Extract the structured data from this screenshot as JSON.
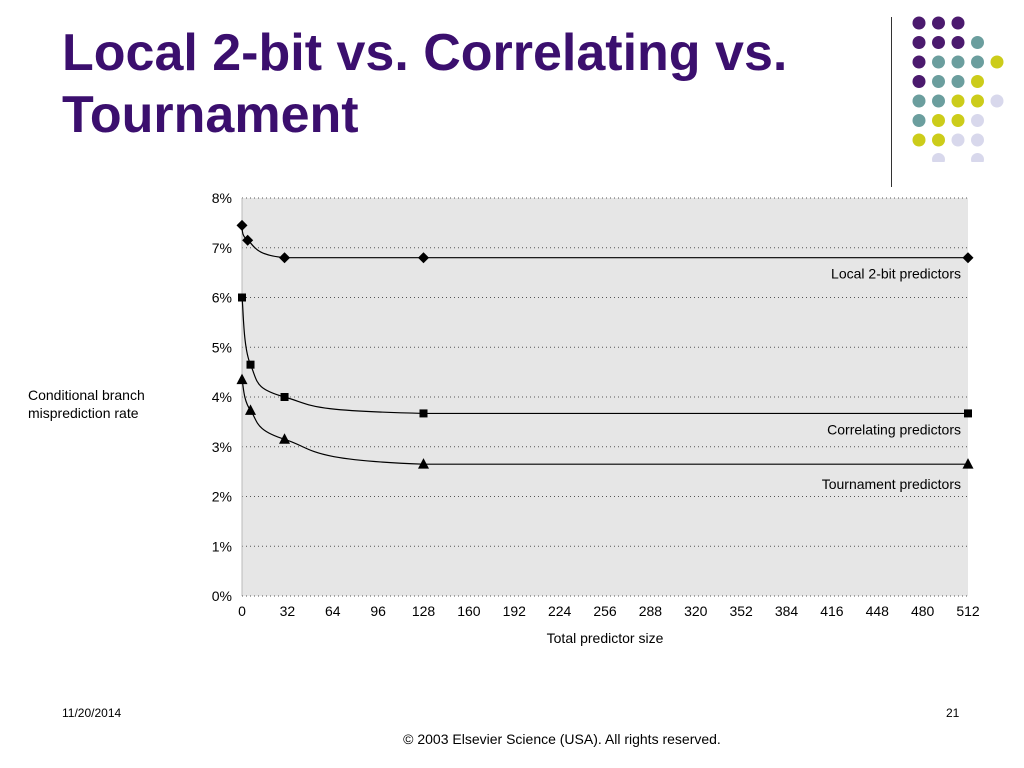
{
  "slide": {
    "title_line1": "Local 2-bit vs. Correlating vs.",
    "title_line2": "Tournament",
    "date": "11/20/2014",
    "page_number": "21",
    "copyright": "© 2003 Elsevier Science (USA). All rights reserved."
  },
  "decoration": {
    "dots": [
      [
        "#4b1a6e",
        "#4b1a6e",
        "#4b1a6e",
        null,
        null
      ],
      [
        "#4b1a6e",
        "#4b1a6e",
        "#4b1a6e",
        "#6b9e9e",
        null
      ],
      [
        "#4b1a6e",
        "#6b9e9e",
        "#6b9e9e",
        "#6b9e9e",
        "#cccc1a"
      ],
      [
        "#4b1a6e",
        "#6b9e9e",
        "#6b9e9e",
        "#cccc1a",
        null
      ],
      [
        "#6b9e9e",
        "#6b9e9e",
        "#cccc1a",
        "#cccc1a",
        "#d8d8ec"
      ],
      [
        "#6b9e9e",
        "#cccc1a",
        "#cccc1a",
        "#d8d8ec",
        null
      ],
      [
        "#cccc1a",
        "#cccc1a",
        "#d8d8ec",
        "#d8d8ec",
        null
      ],
      [
        null,
        "#d8d8ec",
        null,
        "#d8d8ec",
        null
      ]
    ]
  },
  "chart_data": {
    "type": "line",
    "title": "",
    "xlabel": "Total predictor size",
    "ylabel_line1": "Conditional branch",
    "ylabel_line2": "misprediction rate",
    "xlim": [
      0,
      512
    ],
    "ylim": [
      0,
      8
    ],
    "x_ticks": [
      0,
      32,
      64,
      96,
      128,
      160,
      192,
      224,
      256,
      288,
      320,
      352,
      384,
      416,
      448,
      480,
      512
    ],
    "y_ticks": [
      "0%",
      "1%",
      "2%",
      "3%",
      "4%",
      "5%",
      "6%",
      "7%",
      "8%"
    ],
    "grid": "horizontal dotted",
    "plot_background": "#e6e6e6",
    "series": [
      {
        "name": "Local 2-bit predictors",
        "marker": "diamond",
        "points": [
          [
            0,
            7.45
          ],
          [
            4,
            7.15
          ],
          [
            30,
            6.8
          ],
          [
            128,
            6.8
          ],
          [
            512,
            6.8
          ]
        ]
      },
      {
        "name": "Correlating predictors",
        "marker": "square",
        "points": [
          [
            0,
            6.0
          ],
          [
            6,
            4.65
          ],
          [
            30,
            4.0
          ],
          [
            128,
            3.67
          ],
          [
            512,
            3.67
          ]
        ]
      },
      {
        "name": "Tournament predictors",
        "marker": "triangle",
        "points": [
          [
            0,
            4.35
          ],
          [
            6,
            3.73
          ],
          [
            30,
            3.15
          ],
          [
            128,
            2.65
          ],
          [
            512,
            2.65
          ]
        ]
      }
    ]
  }
}
